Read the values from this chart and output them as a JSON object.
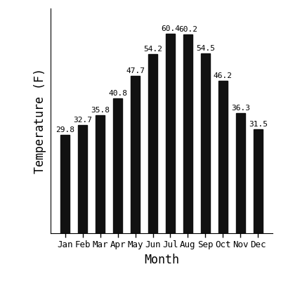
{
  "months": [
    "Jan",
    "Feb",
    "Mar",
    "Apr",
    "May",
    "Jun",
    "Jul",
    "Aug",
    "Sep",
    "Oct",
    "Nov",
    "Dec"
  ],
  "temperatures": [
    29.8,
    32.7,
    35.8,
    40.8,
    47.7,
    54.2,
    60.4,
    60.2,
    54.5,
    46.2,
    36.3,
    31.5
  ],
  "bar_color": "#111111",
  "xlabel": "Month",
  "ylabel": "Temperature (F)",
  "ylim": [
    0,
    68
  ],
  "background_color": "#ffffff",
  "label_fontsize": 12,
  "tick_fontsize": 9,
  "value_fontsize": 8,
  "bar_width": 0.5,
  "figsize": [
    4.0,
    4.0
  ],
  "dpi": 100
}
